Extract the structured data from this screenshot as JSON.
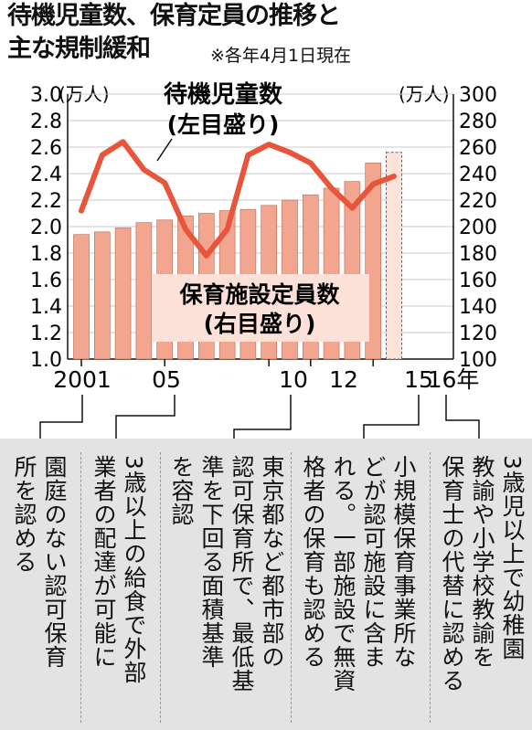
{
  "title_line1": "待機児童数、保育定員の推移と",
  "title_line2": "主な規制緩和",
  "subtitle": "※各年4月1日現在",
  "chart_data": {
    "type": "bar+line",
    "x_labels": [
      "2001",
      "05",
      "10",
      "12",
      "15",
      "16年"
    ],
    "left_axis": {
      "unit": "(万人)",
      "ylim": [
        1.0,
        3.0
      ],
      "ticks": [
        "1.0",
        "1.2",
        "1.4",
        "1.6",
        "1.8",
        "2.0",
        "2.2",
        "2.4",
        "2.6",
        "2.8",
        "3.0"
      ]
    },
    "right_axis": {
      "unit": "(万人)",
      "ylim": [
        100,
        300
      ],
      "ticks": [
        "100",
        "120",
        "140",
        "160",
        "180",
        "200",
        "220",
        "240",
        "260",
        "280",
        "300"
      ]
    },
    "years": [
      2001,
      2002,
      2003,
      2004,
      2005,
      2006,
      2007,
      2008,
      2009,
      2010,
      2011,
      2012,
      2013,
      2014,
      2015,
      2016
    ],
    "line_series": {
      "name_line1": "待機児童数",
      "name_line2": "(左目盛り)",
      "axis": "left",
      "color": "#e8553a",
      "values": [
        2.12,
        2.54,
        2.64,
        2.43,
        2.33,
        1.98,
        1.78,
        1.98,
        2.54,
        2.62,
        2.56,
        2.48,
        2.29,
        2.14,
        2.32,
        2.38
      ]
    },
    "bar_series": {
      "name_line1": "保育施設定員数",
      "name_line2": "(右目盛り)",
      "axis": "right",
      "color": "#f3a68f",
      "values": [
        194,
        196,
        199,
        203,
        205,
        208,
        210,
        212,
        213,
        216,
        220,
        224,
        229,
        234,
        248,
        256
      ],
      "last_bar_projected": true
    }
  },
  "notes": [
    {
      "id": "2001",
      "text_col1": "園庭のない認可保育",
      "text_col2": "所を認める"
    },
    {
      "id": "2004",
      "text_col1": "3歳以上の給食で外部",
      "text_col2": "業者の配達が可能に"
    },
    {
      "id": "2010",
      "text_col1": "東京都など都市部の",
      "text_col2": "認可保育所で、最低基",
      "text_col3": "準を下回る面積基準",
      "text_col4": "を容認"
    },
    {
      "id": "2015",
      "text_col1": "小規模保育事業所な",
      "text_col2": "どが認可施設に含ま",
      "text_col3": "れる。一部施設で無資",
      "text_col4": "格者の保育も認める"
    },
    {
      "id": "2016",
      "text_col1": "3歳児以上で幼稚園",
      "text_col2": "教諭や小学校教諭を",
      "text_col3": "保育士の代替に認める"
    }
  ],
  "colors": {
    "bar": "#f3a68f",
    "bar_stroke": "#b9674f",
    "line": "#e8553a",
    "note_band": "#e3e3e3"
  }
}
